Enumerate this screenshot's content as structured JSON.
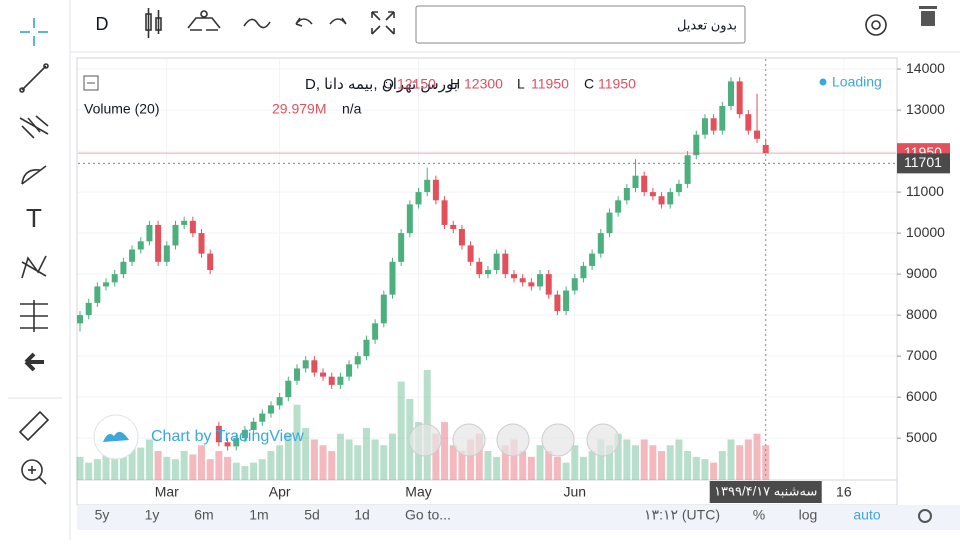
{
  "toolbar": {
    "interval": "D",
    "adjustment": "بدون تعدیل"
  },
  "chart_data": {
    "type": "candlestick",
    "symbol": "بورس تهران ,بیمه دانا ,D",
    "ohlc_legend": [
      {
        "label": "O",
        "value": 12150
      },
      {
        "label": "H",
        "value": 12300
      },
      {
        "label": "L",
        "value": 11950
      },
      {
        "label": "C",
        "value": 11950
      }
    ],
    "volume_title": "Volume (20)",
    "volume_last_label": "29.979M",
    "volume_na": "n/a",
    "status": "Loading",
    "watermark": "Chart by TradingView",
    "last_price": 11950,
    "crosshair_price": 11701,
    "crosshair_date": "سه‌شنبه ۱۳۹۹/۴/۱۷",
    "up_color": "#4caf7d",
    "down_color": "#e2505c",
    "grid": true,
    "ylim": [
      3980,
      14270
    ],
    "yticks": [
      5000,
      6000,
      7000,
      8000,
      9000,
      10000,
      11000,
      12000,
      13000,
      14000
    ],
    "categories": [
      null,
      null,
      null,
      null,
      null,
      null,
      null,
      null,
      null,
      null,
      "Mar",
      null,
      null,
      null,
      null,
      null,
      null,
      null,
      null,
      null,
      null,
      null,
      null,
      "Apr",
      null,
      null,
      null,
      null,
      null,
      null,
      null,
      null,
      null,
      null,
      null,
      null,
      null,
      null,
      null,
      "May",
      null,
      null,
      null,
      null,
      null,
      null,
      null,
      null,
      null,
      null,
      null,
      null,
      null,
      null,
      null,
      null,
      null,
      "Jun",
      null,
      null,
      null,
      null,
      null,
      null,
      null,
      null,
      null,
      null,
      null,
      null,
      null,
      null,
      null,
      null,
      null,
      null,
      null,
      null,
      null,
      null,
      null,
      null,
      null,
      null,
      null,
      null,
      null,
      null,
      "16",
      null
    ],
    "open": [
      7800,
      8000,
      8300,
      8700,
      8800,
      9000,
      9300,
      9600,
      9800,
      10200,
      9300,
      9700,
      10200,
      10300,
      10000,
      9500,
      5300,
      4900,
      4800,
      5000,
      5200,
      5400,
      5600,
      5800,
      6000,
      6400,
      6700,
      6900,
      6600,
      6500,
      6300,
      6500,
      6800,
      7000,
      7400,
      7800,
      8500,
      9300,
      10000,
      10700,
      11000,
      11300,
      10800,
      10200,
      10100,
      9700,
      9300,
      9000,
      9100,
      9500,
      9000,
      8900,
      8800,
      8700,
      9000,
      8500,
      8100,
      8600,
      8900,
      9200,
      9500,
      10000,
      10500,
      10800,
      11100,
      11400,
      11000,
      10900,
      10700,
      11000,
      11200,
      11900,
      12400,
      12800,
      12500,
      13100,
      13700,
      12900,
      12500,
      12150,
      null,
      null,
      null,
      null,
      null,
      null,
      null,
      null,
      null,
      null
    ],
    "high": [
      8100,
      8400,
      8800,
      8900,
      9100,
      9400,
      9700,
      9900,
      10300,
      10300,
      9800,
      10300,
      10400,
      10400,
      10100,
      9600,
      5400,
      5000,
      5100,
      5300,
      5500,
      5700,
      5900,
      6100,
      6500,
      6800,
      7000,
      7000,
      6700,
      6600,
      6600,
      6900,
      7100,
      7500,
      7900,
      8600,
      9400,
      10100,
      10800,
      11100,
      11600,
      11400,
      10900,
      10300,
      10200,
      9800,
      9400,
      9200,
      9600,
      9600,
      9100,
      9000,
      8900,
      9100,
      9100,
      8600,
      8700,
      9000,
      9300,
      9600,
      10100,
      10600,
      10900,
      11200,
      11800,
      11500,
      11100,
      11000,
      11100,
      11300,
      12000,
      12500,
      12900,
      12900,
      13200,
      13800,
      13800,
      13000,
      13400,
      12300,
      null,
      null,
      null,
      null,
      null,
      null,
      null,
      null,
      null,
      null
    ],
    "low": [
      7600,
      7900,
      8200,
      8600,
      8700,
      8900,
      9200,
      9500,
      9700,
      9200,
      9200,
      9600,
      10100,
      9900,
      9400,
      9000,
      4800,
      4700,
      4700,
      4900,
      5100,
      5300,
      5500,
      5700,
      5900,
      6300,
      6600,
      6500,
      6400,
      6200,
      6200,
      6400,
      6700,
      6900,
      7300,
      7700,
      8400,
      9200,
      9900,
      10600,
      10900,
      10700,
      10100,
      10000,
      9600,
      9200,
      8900,
      8900,
      9000,
      8900,
      8800,
      8700,
      8600,
      8600,
      8400,
      8000,
      8000,
      8500,
      8800,
      9100,
      9400,
      9900,
      10400,
      10700,
      11000,
      10900,
      10800,
      10600,
      10600,
      10900,
      11100,
      11800,
      12300,
      12400,
      12400,
      13000,
      12800,
      12400,
      12200,
      11950,
      null,
      null,
      null,
      null,
      null,
      null,
      null,
      null,
      null,
      null
    ],
    "close": [
      8000,
      8300,
      8700,
      8800,
      9000,
      9300,
      9600,
      9800,
      10200,
      9300,
      9700,
      10200,
      10300,
      10000,
      9500,
      9100,
      4900,
      4800,
      5000,
      5200,
      5400,
      5600,
      5800,
      6000,
      6400,
      6700,
      6900,
      6600,
      6500,
      6300,
      6500,
      6800,
      7000,
      7400,
      7800,
      8500,
      9300,
      10000,
      10700,
      11000,
      11300,
      10800,
      10200,
      10100,
      9700,
      9300,
      9000,
      9100,
      9500,
      9000,
      8900,
      8800,
      8700,
      9000,
      8500,
      8100,
      8600,
      8900,
      9200,
      9500,
      10000,
      10500,
      10800,
      11100,
      11400,
      11000,
      10900,
      10700,
      11000,
      11200,
      11900,
      12400,
      12800,
      12500,
      13100,
      13700,
      12900,
      12500,
      12300,
      11950,
      null,
      null,
      null,
      null,
      null,
      null,
      null,
      null,
      null,
      null
    ],
    "volume": [
      20,
      15,
      18,
      25,
      22,
      20,
      30,
      28,
      35,
      25,
      20,
      18,
      25,
      22,
      30,
      18,
      25,
      20,
      15,
      12,
      15,
      18,
      25,
      30,
      40,
      65,
      45,
      35,
      30,
      25,
      40,
      35,
      30,
      45,
      35,
      30,
      40,
      85,
      70,
      50,
      95,
      40,
      50,
      30,
      25,
      35,
      40,
      25,
      20,
      30,
      35,
      25,
      20,
      30,
      25,
      20,
      15,
      30,
      20,
      25,
      35,
      30,
      40,
      35,
      30,
      35,
      30,
      25,
      30,
      35,
      25,
      20,
      18,
      15,
      25,
      35,
      30,
      35,
      40,
      29.979,
      null,
      null,
      null,
      null,
      null,
      null,
      null,
      null,
      null,
      null
    ]
  },
  "bottom_bar": {
    "ranges": [
      "5y",
      "1y",
      "6m",
      "1m",
      "5d",
      "1d"
    ],
    "goto": "Go to...",
    "time": "۱۳:۱۲ (UTC)",
    "options": [
      "%",
      "log",
      "auto"
    ]
  }
}
